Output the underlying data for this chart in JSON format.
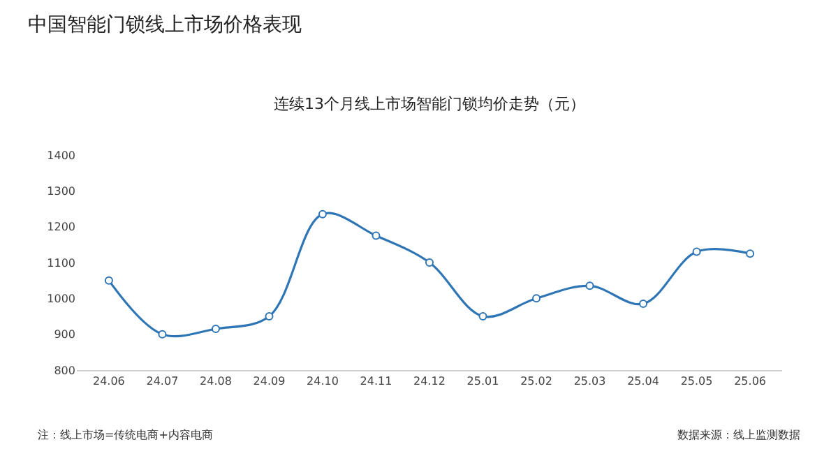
{
  "chart_data": {
    "type": "line",
    "title": "中国智能门锁线上市场价格表现",
    "subtitle": "连续13个月线上市场智能门锁均价走势（元）",
    "categories": [
      "24.06",
      "24.07",
      "24.08",
      "24.09",
      "24.10",
      "24.11",
      "24.12",
      "25.01",
      "25.02",
      "25.03",
      "25.04",
      "25.05",
      "25.06"
    ],
    "series": [
      {
        "color": "#2e75b6",
        "values": [
          1050,
          900,
          915,
          950,
          1235,
          1175,
          1100,
          950,
          1000,
          1035,
          985,
          1130,
          1125
        ]
      }
    ],
    "ylim": [
      800,
      1400
    ],
    "yticks": [
      800,
      900,
      1000,
      1100,
      1200,
      1300,
      1400
    ],
    "grid": false,
    "marker": "circle",
    "line_style": "solid",
    "annotations": [
      "注：线上市场=传统电商+内容电商",
      "数据来源：线上监测数据"
    ]
  }
}
